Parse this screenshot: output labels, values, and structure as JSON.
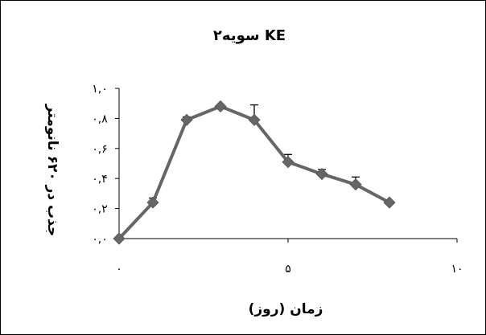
{
  "chart_data": {
    "type": "line",
    "title": "سویه۲ KE",
    "xlabel": "زمان (روز)",
    "ylabel": "جذب در ۶۲۰ نانومتر",
    "xlim": [
      0,
      10
    ],
    "ylim": [
      0,
      1
    ],
    "x_ticks": [
      {
        "value": 0,
        "label": "۰"
      },
      {
        "value": 5,
        "label": "۵"
      },
      {
        "value": 10,
        "label": "۱۰"
      }
    ],
    "y_ticks": [
      {
        "value": 0.0,
        "label": "۰,۰"
      },
      {
        "value": 0.2,
        "label": "۰,۲"
      },
      {
        "value": 0.4,
        "label": "۰,۴"
      },
      {
        "value": 0.6,
        "label": "۰,۶"
      },
      {
        "value": 0.8,
        "label": "۰,۸"
      },
      {
        "value": 1.0,
        "label": "۱,۰"
      }
    ],
    "grid": false,
    "series": [
      {
        "color": "#666666",
        "marker": "diamond",
        "points": [
          {
            "x": 0,
            "y": 0.0,
            "err": 0
          },
          {
            "x": 1,
            "y": 0.24,
            "err": 0.03
          },
          {
            "x": 2,
            "y": 0.79,
            "err": 0.02
          },
          {
            "x": 3,
            "y": 0.88,
            "err": 0.01
          },
          {
            "x": 4,
            "y": 0.79,
            "err": 0.1
          },
          {
            "x": 5,
            "y": 0.51,
            "err": 0.05
          },
          {
            "x": 6,
            "y": 0.43,
            "err": 0.03
          },
          {
            "x": 7,
            "y": 0.36,
            "err": 0.05
          },
          {
            "x": 8,
            "y": 0.24,
            "err": 0
          }
        ]
      }
    ]
  }
}
